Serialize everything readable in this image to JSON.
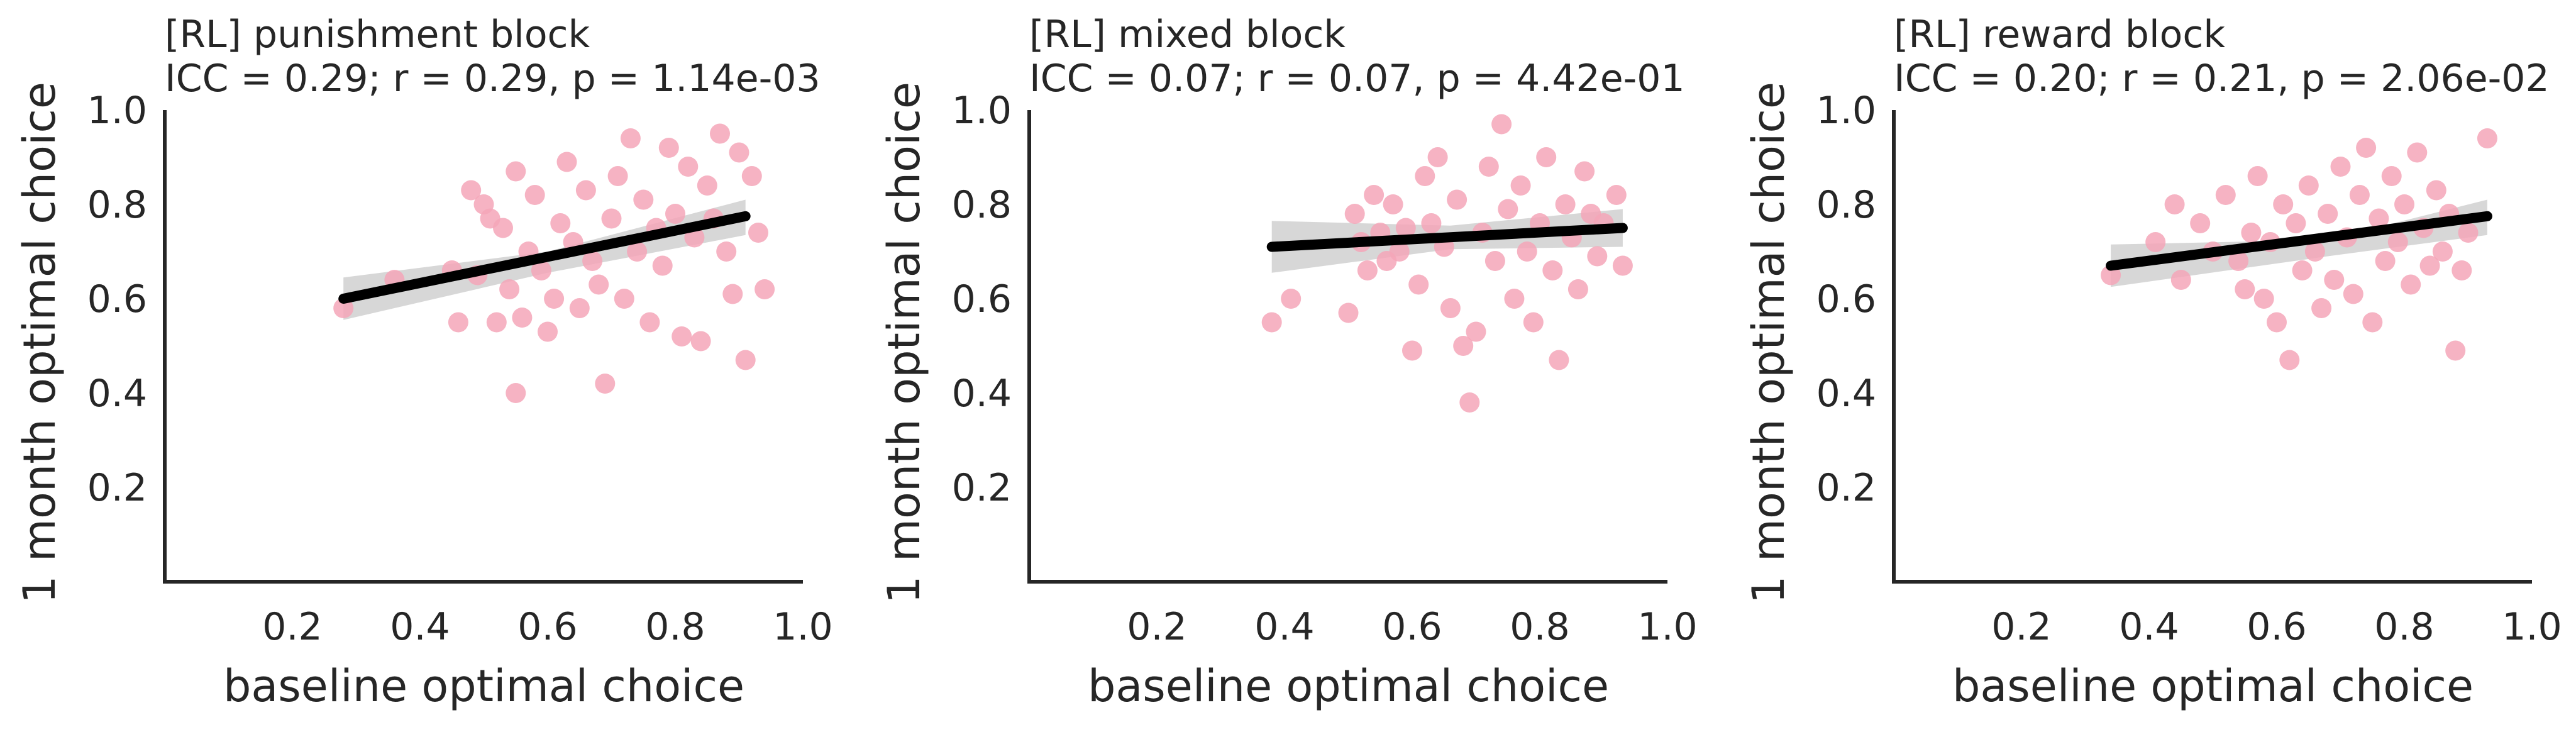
{
  "chart_data": [
    {
      "type": "scatter",
      "title": "[RL] punishment block",
      "subtitle": "ICC = 0.29; r = 0.29, p = 1.14e-03",
      "xlabel": "baseline optimal choice",
      "ylabel": "1 month optimal choice",
      "xlim": [
        0.0,
        1.0
      ],
      "ylim": [
        0.0,
        1.0
      ],
      "xticks": [
        "0.2",
        "0.4",
        "0.6",
        "0.8",
        "1.0"
      ],
      "yticks": [
        "0.2",
        "0.4",
        "0.6",
        "0.8",
        "1.0"
      ],
      "grid": false,
      "marker_color": "#f4a6b8",
      "fit_line_color": "#000000",
      "ci_band_color": "#c9c9c9",
      "regression_line": {
        "x": [
          0.28,
          0.91
        ],
        "y": [
          0.6,
          0.775
        ]
      },
      "ci_band": {
        "x": [
          0.28,
          0.6,
          0.91
        ],
        "upper": [
          0.645,
          0.7,
          0.81
        ],
        "lower": [
          0.555,
          0.655,
          0.735
        ]
      },
      "points": [
        {
          "x": 0.28,
          "y": 0.58
        },
        {
          "x": 0.36,
          "y": 0.64
        },
        {
          "x": 0.45,
          "y": 0.66
        },
        {
          "x": 0.46,
          "y": 0.55
        },
        {
          "x": 0.48,
          "y": 0.83
        },
        {
          "x": 0.49,
          "y": 0.65
        },
        {
          "x": 0.5,
          "y": 0.8
        },
        {
          "x": 0.51,
          "y": 0.77
        },
        {
          "x": 0.52,
          "y": 0.55
        },
        {
          "x": 0.53,
          "y": 0.75
        },
        {
          "x": 0.54,
          "y": 0.62
        },
        {
          "x": 0.55,
          "y": 0.4
        },
        {
          "x": 0.55,
          "y": 0.87
        },
        {
          "x": 0.56,
          "y": 0.56
        },
        {
          "x": 0.57,
          "y": 0.7
        },
        {
          "x": 0.58,
          "y": 0.82
        },
        {
          "x": 0.59,
          "y": 0.66
        },
        {
          "x": 0.6,
          "y": 0.53
        },
        {
          "x": 0.61,
          "y": 0.6
        },
        {
          "x": 0.62,
          "y": 0.76
        },
        {
          "x": 0.63,
          "y": 0.89
        },
        {
          "x": 0.64,
          "y": 0.72
        },
        {
          "x": 0.65,
          "y": 0.58
        },
        {
          "x": 0.66,
          "y": 0.83
        },
        {
          "x": 0.67,
          "y": 0.68
        },
        {
          "x": 0.68,
          "y": 0.63
        },
        {
          "x": 0.69,
          "y": 0.42
        },
        {
          "x": 0.7,
          "y": 0.77
        },
        {
          "x": 0.71,
          "y": 0.86
        },
        {
          "x": 0.72,
          "y": 0.6
        },
        {
          "x": 0.73,
          "y": 0.94
        },
        {
          "x": 0.74,
          "y": 0.7
        },
        {
          "x": 0.75,
          "y": 0.81
        },
        {
          "x": 0.76,
          "y": 0.55
        },
        {
          "x": 0.77,
          "y": 0.75
        },
        {
          "x": 0.78,
          "y": 0.67
        },
        {
          "x": 0.79,
          "y": 0.92
        },
        {
          "x": 0.8,
          "y": 0.78
        },
        {
          "x": 0.81,
          "y": 0.52
        },
        {
          "x": 0.82,
          "y": 0.88
        },
        {
          "x": 0.83,
          "y": 0.73
        },
        {
          "x": 0.84,
          "y": 0.51
        },
        {
          "x": 0.85,
          "y": 0.84
        },
        {
          "x": 0.86,
          "y": 0.77
        },
        {
          "x": 0.87,
          "y": 0.95
        },
        {
          "x": 0.88,
          "y": 0.7
        },
        {
          "x": 0.89,
          "y": 0.61
        },
        {
          "x": 0.9,
          "y": 0.91
        },
        {
          "x": 0.91,
          "y": 0.47
        },
        {
          "x": 0.92,
          "y": 0.86
        },
        {
          "x": 0.93,
          "y": 0.74
        },
        {
          "x": 0.94,
          "y": 0.62
        }
      ]
    },
    {
      "type": "scatter",
      "title": "[RL] mixed block",
      "subtitle": "ICC = 0.07; r = 0.07, p = 4.42e-01",
      "xlabel": "baseline optimal choice",
      "ylabel": "1 month optimal choice",
      "xlim": [
        0.0,
        1.0
      ],
      "ylim": [
        0.0,
        1.0
      ],
      "xticks": [
        "0.2",
        "0.4",
        "0.6",
        "0.8",
        "1.0"
      ],
      "yticks": [
        "0.2",
        "0.4",
        "0.6",
        "0.8",
        "1.0"
      ],
      "grid": false,
      "marker_color": "#f4a6b8",
      "fit_line_color": "#000000",
      "ci_band_color": "#c9c9c9",
      "regression_line": {
        "x": [
          0.38,
          0.93
        ],
        "y": [
          0.71,
          0.75
        ]
      },
      "ci_band": {
        "x": [
          0.38,
          0.66,
          0.93
        ],
        "upper": [
          0.765,
          0.755,
          0.79
        ],
        "lower": [
          0.655,
          0.705,
          0.71
        ]
      },
      "points": [
        {
          "x": 0.38,
          "y": 0.55
        },
        {
          "x": 0.41,
          "y": 0.6
        },
        {
          "x": 0.5,
          "y": 0.57
        },
        {
          "x": 0.51,
          "y": 0.78
        },
        {
          "x": 0.52,
          "y": 0.72
        },
        {
          "x": 0.53,
          "y": 0.66
        },
        {
          "x": 0.54,
          "y": 0.82
        },
        {
          "x": 0.55,
          "y": 0.74
        },
        {
          "x": 0.56,
          "y": 0.68
        },
        {
          "x": 0.57,
          "y": 0.8
        },
        {
          "x": 0.58,
          "y": 0.7
        },
        {
          "x": 0.59,
          "y": 0.75
        },
        {
          "x": 0.6,
          "y": 0.49
        },
        {
          "x": 0.61,
          "y": 0.63
        },
        {
          "x": 0.62,
          "y": 0.86
        },
        {
          "x": 0.63,
          "y": 0.76
        },
        {
          "x": 0.64,
          "y": 0.9
        },
        {
          "x": 0.65,
          "y": 0.71
        },
        {
          "x": 0.66,
          "y": 0.58
        },
        {
          "x": 0.67,
          "y": 0.81
        },
        {
          "x": 0.68,
          "y": 0.5
        },
        {
          "x": 0.69,
          "y": 0.38
        },
        {
          "x": 0.7,
          "y": 0.53
        },
        {
          "x": 0.71,
          "y": 0.74
        },
        {
          "x": 0.72,
          "y": 0.88
        },
        {
          "x": 0.73,
          "y": 0.68
        },
        {
          "x": 0.74,
          "y": 0.97
        },
        {
          "x": 0.75,
          "y": 0.79
        },
        {
          "x": 0.76,
          "y": 0.6
        },
        {
          "x": 0.77,
          "y": 0.84
        },
        {
          "x": 0.78,
          "y": 0.7
        },
        {
          "x": 0.79,
          "y": 0.55
        },
        {
          "x": 0.8,
          "y": 0.76
        },
        {
          "x": 0.81,
          "y": 0.9
        },
        {
          "x": 0.82,
          "y": 0.66
        },
        {
          "x": 0.83,
          "y": 0.47
        },
        {
          "x": 0.84,
          "y": 0.8
        },
        {
          "x": 0.85,
          "y": 0.73
        },
        {
          "x": 0.86,
          "y": 0.62
        },
        {
          "x": 0.87,
          "y": 0.87
        },
        {
          "x": 0.88,
          "y": 0.78
        },
        {
          "x": 0.89,
          "y": 0.69
        },
        {
          "x": 0.9,
          "y": 0.76
        },
        {
          "x": 0.92,
          "y": 0.82
        },
        {
          "x": 0.93,
          "y": 0.67
        }
      ]
    },
    {
      "type": "scatter",
      "title": "[RL] reward block",
      "subtitle": "ICC = 0.20; r = 0.21, p = 2.06e-02",
      "xlabel": "baseline optimal choice",
      "ylabel": "1 month optimal choice",
      "xlim": [
        0.0,
        1.0
      ],
      "ylim": [
        0.0,
        1.0
      ],
      "xticks": [
        "0.2",
        "0.4",
        "0.6",
        "0.8",
        "1.0"
      ],
      "yticks": [
        "0.2",
        "0.4",
        "0.6",
        "0.8",
        "1.0"
      ],
      "grid": false,
      "marker_color": "#f4a6b8",
      "fit_line_color": "#000000",
      "ci_band_color": "#c9c9c9",
      "regression_line": {
        "x": [
          0.34,
          0.93
        ],
        "y": [
          0.67,
          0.775
        ]
      },
      "ci_band": {
        "x": [
          0.34,
          0.68,
          0.93
        ],
        "upper": [
          0.715,
          0.725,
          0.81
        ],
        "lower": [
          0.625,
          0.69,
          0.735
        ]
      },
      "points": [
        {
          "x": 0.34,
          "y": 0.65
        },
        {
          "x": 0.41,
          "y": 0.72
        },
        {
          "x": 0.44,
          "y": 0.8
        },
        {
          "x": 0.45,
          "y": 0.64
        },
        {
          "x": 0.48,
          "y": 0.76
        },
        {
          "x": 0.5,
          "y": 0.7
        },
        {
          "x": 0.52,
          "y": 0.82
        },
        {
          "x": 0.54,
          "y": 0.68
        },
        {
          "x": 0.55,
          "y": 0.62
        },
        {
          "x": 0.56,
          "y": 0.74
        },
        {
          "x": 0.57,
          "y": 0.86
        },
        {
          "x": 0.58,
          "y": 0.6
        },
        {
          "x": 0.59,
          "y": 0.72
        },
        {
          "x": 0.6,
          "y": 0.55
        },
        {
          "x": 0.61,
          "y": 0.8
        },
        {
          "x": 0.62,
          "y": 0.47
        },
        {
          "x": 0.63,
          "y": 0.76
        },
        {
          "x": 0.64,
          "y": 0.66
        },
        {
          "x": 0.65,
          "y": 0.84
        },
        {
          "x": 0.66,
          "y": 0.7
        },
        {
          "x": 0.67,
          "y": 0.58
        },
        {
          "x": 0.68,
          "y": 0.78
        },
        {
          "x": 0.69,
          "y": 0.64
        },
        {
          "x": 0.7,
          "y": 0.88
        },
        {
          "x": 0.71,
          "y": 0.73
        },
        {
          "x": 0.72,
          "y": 0.61
        },
        {
          "x": 0.73,
          "y": 0.82
        },
        {
          "x": 0.74,
          "y": 0.92
        },
        {
          "x": 0.75,
          "y": 0.55
        },
        {
          "x": 0.76,
          "y": 0.77
        },
        {
          "x": 0.77,
          "y": 0.68
        },
        {
          "x": 0.78,
          "y": 0.86
        },
        {
          "x": 0.79,
          "y": 0.72
        },
        {
          "x": 0.8,
          "y": 0.8
        },
        {
          "x": 0.81,
          "y": 0.63
        },
        {
          "x": 0.82,
          "y": 0.91
        },
        {
          "x": 0.83,
          "y": 0.75
        },
        {
          "x": 0.84,
          "y": 0.67
        },
        {
          "x": 0.85,
          "y": 0.83
        },
        {
          "x": 0.86,
          "y": 0.7
        },
        {
          "x": 0.87,
          "y": 0.78
        },
        {
          "x": 0.88,
          "y": 0.49
        },
        {
          "x": 0.89,
          "y": 0.66
        },
        {
          "x": 0.9,
          "y": 0.74
        },
        {
          "x": 0.93,
          "y": 0.94
        }
      ]
    }
  ]
}
